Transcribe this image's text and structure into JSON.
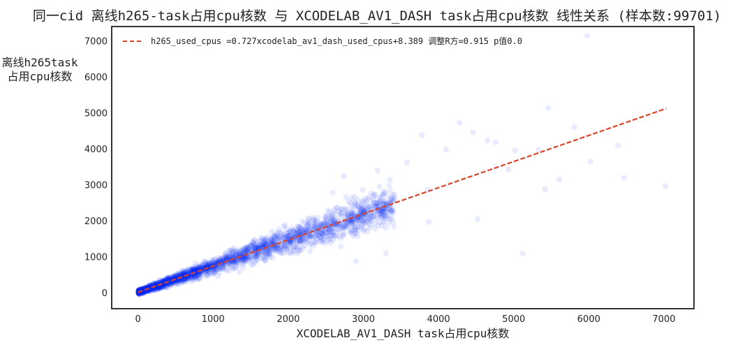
{
  "chart_data": {
    "type": "scatter",
    "title": "同一cid 离线h265-task占用cpu核数 与 XCODELAB_AV1_DASH task占用cpu核数 线性关系 (样本数:99701)",
    "xlabel": "XCODELAB_AV1_DASH task占用cpu核数",
    "ylabel_lines": [
      "离线h265task",
      "占用cpu核数"
    ],
    "xlim": [
      -350,
      7400
    ],
    "ylim": [
      -450,
      7400
    ],
    "x_ticks": [
      0,
      1000,
      2000,
      3000,
      4000,
      5000,
      6000,
      7000
    ],
    "y_ticks": [
      0,
      1000,
      2000,
      3000,
      4000,
      5000,
      6000,
      7000
    ],
    "grid": false,
    "legend_position": "top-left",
    "series": [
      {
        "kind": "fit-line",
        "name": "h265_used_cpus =0.727xcodelab_av1_dash_used_cpus+8.389  调整R方=0.915 p值0.0",
        "slope": 0.727,
        "intercept": 8.389,
        "x_range": [
          0,
          7030
        ],
        "color": "#d9452b",
        "style": "dashed"
      },
      {
        "kind": "points",
        "color": "#0a2cf0",
        "opacity": 0.09,
        "sample_count": 99701,
        "outliers": [
          [
            5980,
            7150
          ],
          [
            5460,
            5130
          ],
          [
            4280,
            4720
          ],
          [
            4460,
            4450
          ],
          [
            3780,
            4380
          ],
          [
            4650,
            4230
          ],
          [
            4760,
            4180
          ],
          [
            5020,
            3950
          ],
          [
            5330,
            3980
          ],
          [
            6020,
            3640
          ],
          [
            7020,
            2960
          ],
          [
            5120,
            1090
          ],
          [
            4520,
            2040
          ],
          [
            3870,
            1960
          ],
          [
            3300,
            1090
          ],
          [
            2900,
            870
          ],
          [
            4930,
            3420
          ],
          [
            5420,
            2880
          ],
          [
            5610,
            3140
          ],
          [
            6390,
            4090
          ],
          [
            5810,
            4600
          ],
          [
            6470,
            3190
          ],
          [
            4100,
            3980
          ],
          [
            3580,
            3620
          ],
          [
            3190,
            3390
          ],
          [
            2740,
            3240
          ],
          [
            2590,
            2780
          ],
          [
            2920,
            2120
          ],
          [
            3420,
            2600
          ],
          [
            3860,
            2860
          ]
        ]
      }
    ]
  }
}
